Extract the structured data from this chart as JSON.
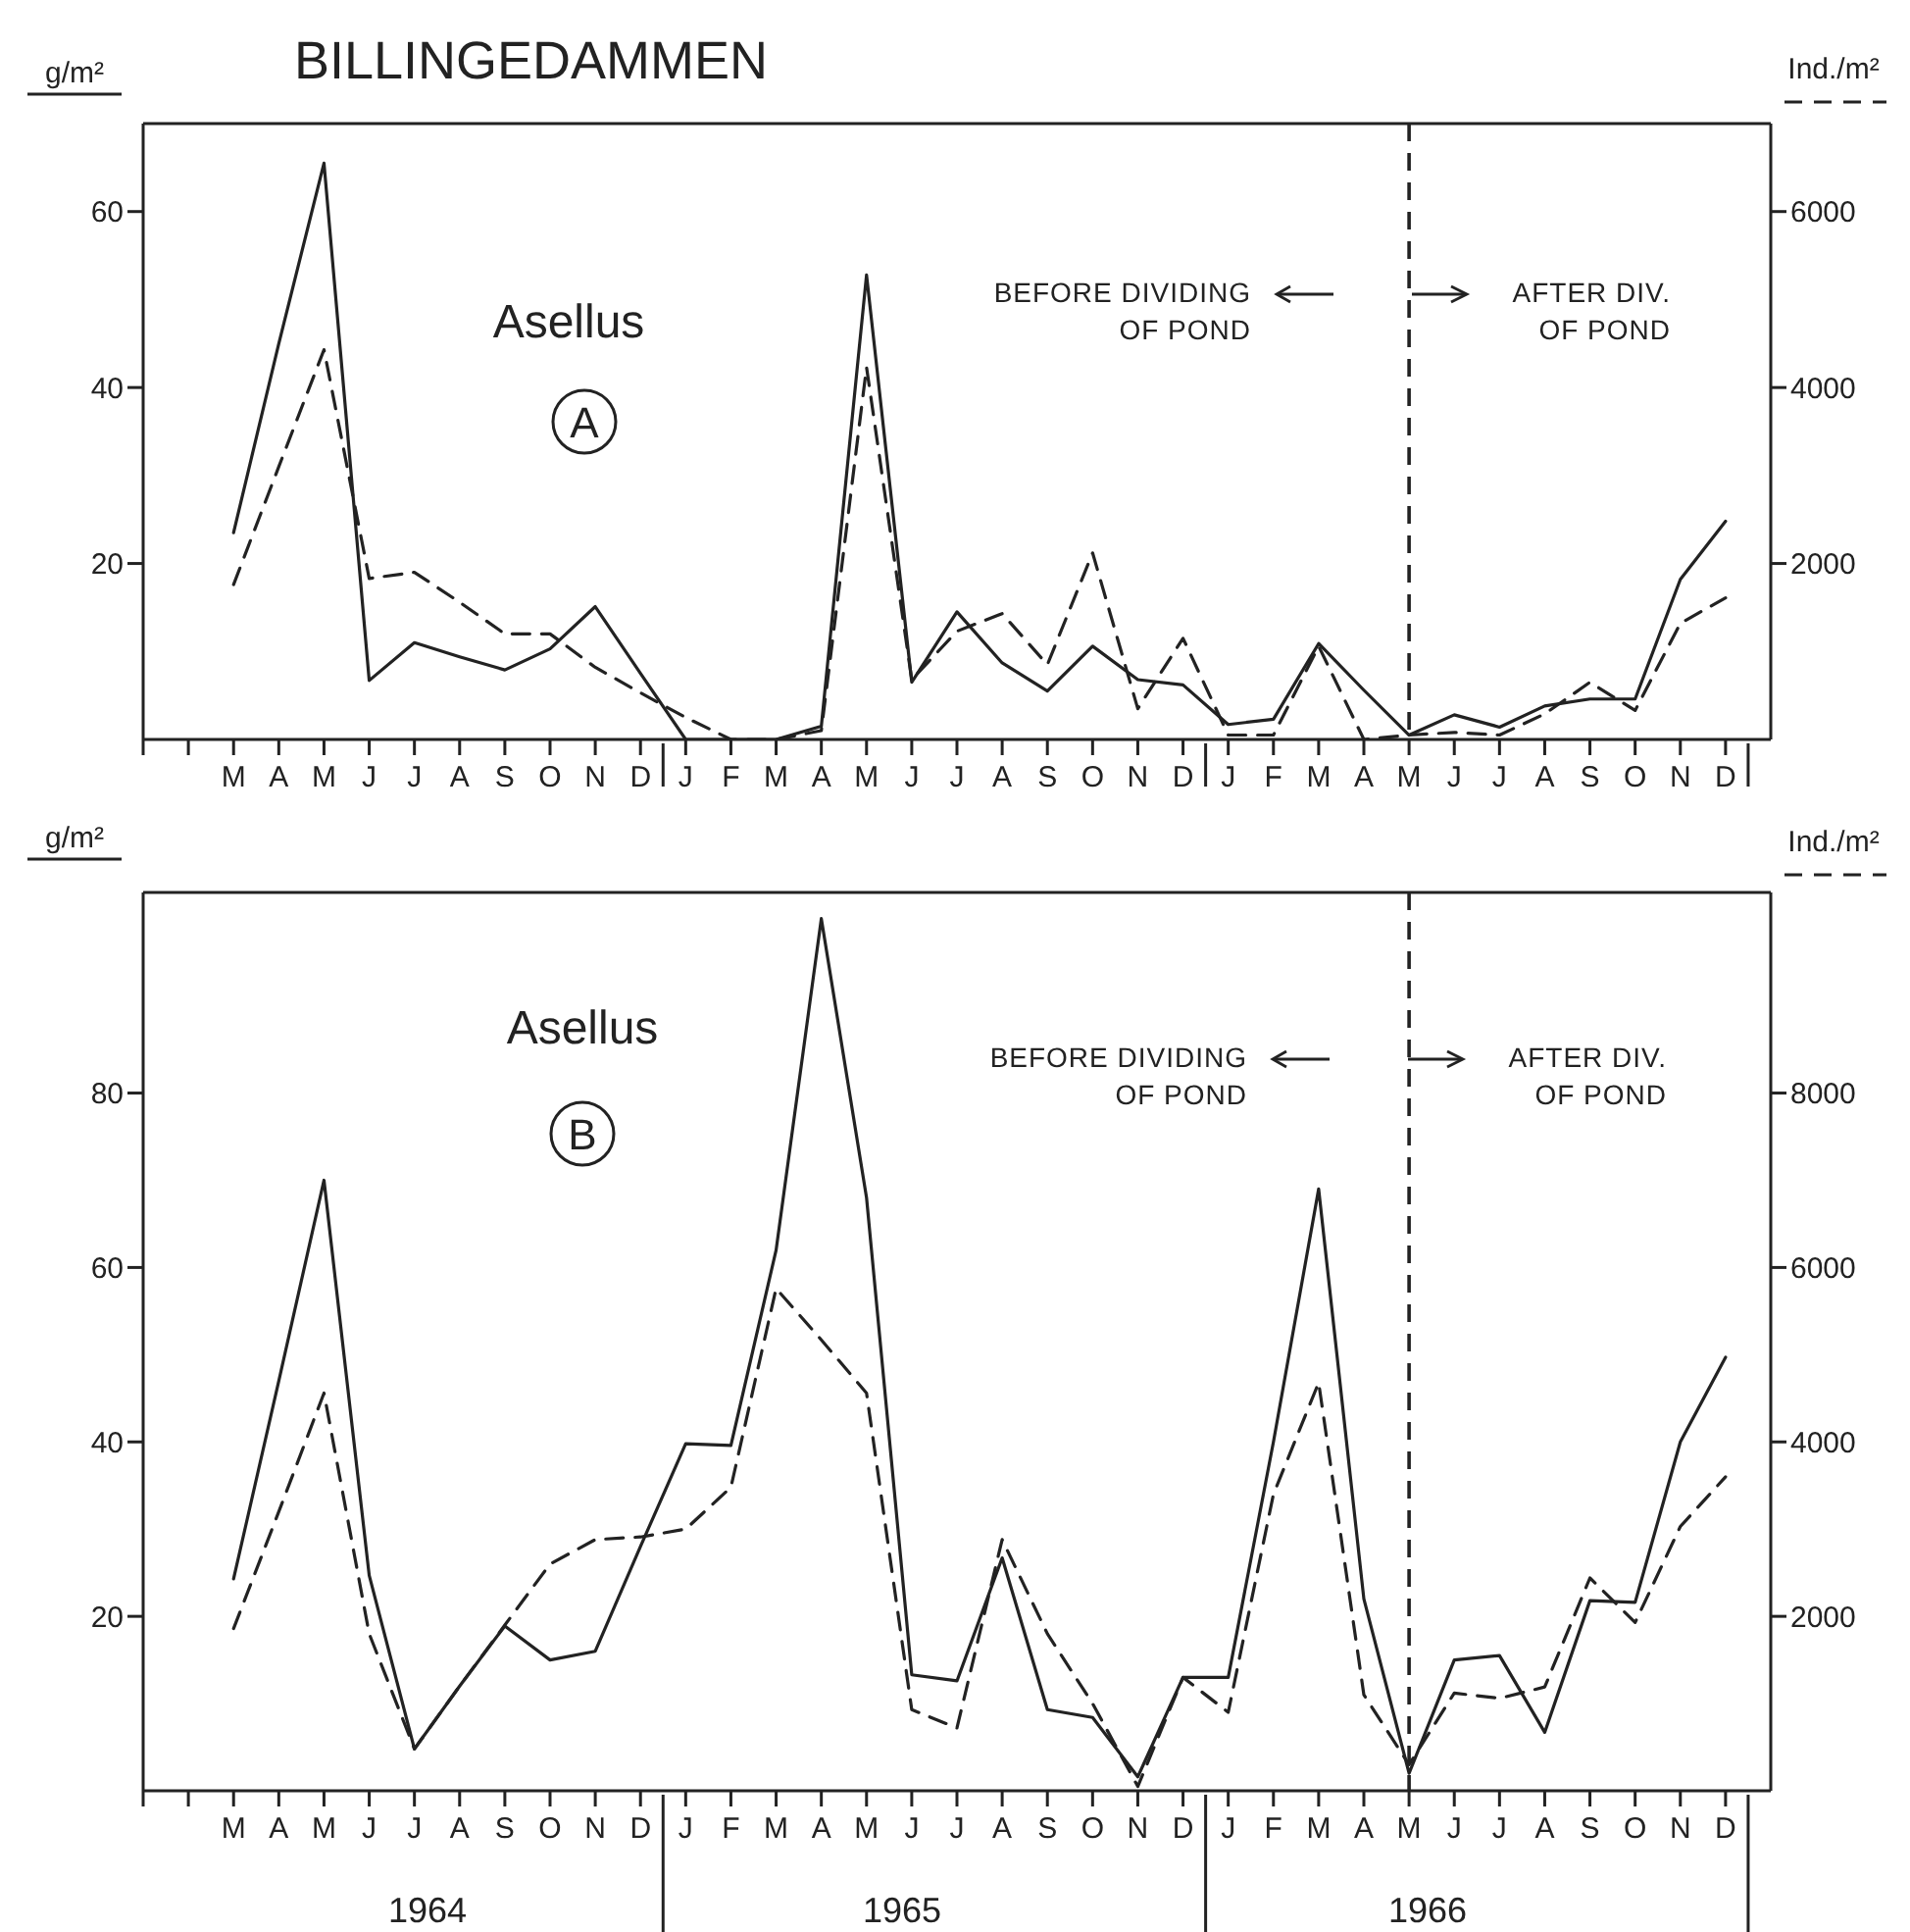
{
  "chart_data": [
    {
      "type": "line",
      "title": "BILLINGEDAMMEN",
      "ylabel": "g/m²",
      "y2label": "Ind./m²",
      "annotations": [
        "Asellus",
        "A",
        "BEFORE DIVIDING OF POND",
        "AFTER DIV. OF POND"
      ],
      "categories": [
        null,
        null,
        "M",
        "A",
        "M",
        "J",
        "J",
        "A",
        "S",
        "O",
        "N",
        "D",
        "J",
        "F",
        "M",
        "A",
        "M",
        "J",
        "J",
        "A",
        "S",
        "O",
        "N",
        "D",
        "J",
        "F",
        "M",
        "A",
        "M",
        "J",
        "J",
        "A",
        "S",
        "O",
        "N",
        "D"
      ],
      "series": [
        {
          "color": "#222222",
          "line_style": "solid",
          "values": [
            null,
            null,
            23.5,
            45,
            65.5,
            6.7,
            11,
            9.4,
            7.9,
            10.3,
            15.1,
            7.5,
            0,
            0,
            0,
            1.5,
            52.8,
            6.5,
            14.5,
            8.7,
            5.5,
            10.6,
            6.8,
            6.2,
            1.7,
            2.3,
            10.9,
            5.6,
            0.5,
            2.8,
            1.4,
            3.8,
            4.6,
            4.6,
            18.2,
            24.8
          ]
        },
        {
          "color": "#222222",
          "line_style": "dashed",
          "axis": "y2",
          "values": [
            null,
            null,
            1760,
            3100,
            4430,
            1830,
            1900,
            1560,
            1200,
            1200,
            820,
            530,
            250,
            0,
            0,
            100,
            4230,
            680,
            1230,
            1430,
            850,
            2120,
            350,
            1150,
            50,
            50,
            1060,
            0,
            50,
            80,
            50,
            290,
            650,
            330,
            1320,
            1610
          ]
        }
      ],
      "ylim": [
        0,
        70
      ],
      "yticks": [
        20,
        40,
        60
      ],
      "y2lim": [
        0,
        7000
      ],
      "y2ticks": [
        2000,
        4000,
        6000
      ]
    },
    {
      "type": "line",
      "ylabel": "g/m²",
      "y2label": "Ind./m²",
      "annotations": [
        "Asellus",
        "B",
        "BEFORE DIVIDING OF POND",
        "AFTER DIV. OF POND",
        "1964",
        "1965",
        "1966"
      ],
      "categories": [
        null,
        null,
        "M",
        "A",
        "M",
        "J",
        "J",
        "A",
        "S",
        "O",
        "N",
        "D",
        "J",
        "F",
        "M",
        "A",
        "M",
        "J",
        "J",
        "A",
        "S",
        "O",
        "N",
        "D",
        "J",
        "F",
        "M",
        "A",
        "M",
        "J",
        "J",
        "A",
        "S",
        "O",
        "N",
        "D"
      ],
      "series": [
        {
          "color": "#222222",
          "line_style": "solid",
          "values": [
            null,
            null,
            24.3,
            47,
            70,
            24.7,
            4.8,
            12,
            18.9,
            15,
            16,
            28,
            39.8,
            39.6,
            62,
            100,
            68,
            13.3,
            12.6,
            26.7,
            9.3,
            8.4,
            1.6,
            13,
            13,
            40,
            69,
            22,
            2,
            15,
            15.5,
            6.7,
            21.8,
            21.6,
            40,
            49.7
          ]
        },
        {
          "color": "#222222",
          "line_style": "dashed",
          "axis": "y2",
          "values": [
            null,
            null,
            1860,
            3200,
            4560,
            1800,
            480,
            1200,
            1900,
            2600,
            2880,
            2910,
            3000,
            3480,
            5760,
            5170,
            4560,
            930,
            720,
            2880,
            1800,
            1000,
            50,
            1300,
            900,
            3400,
            4680,
            1100,
            300,
            1120,
            1060,
            1190,
            2440,
            1930,
            3030,
            3600
          ]
        }
      ],
      "ylim": [
        0,
        103
      ],
      "yticks": [
        20,
        40,
        60,
        80
      ],
      "y2lim": [
        0,
        10300
      ],
      "y2ticks": [
        2000,
        4000,
        6000,
        8000
      ]
    }
  ]
}
